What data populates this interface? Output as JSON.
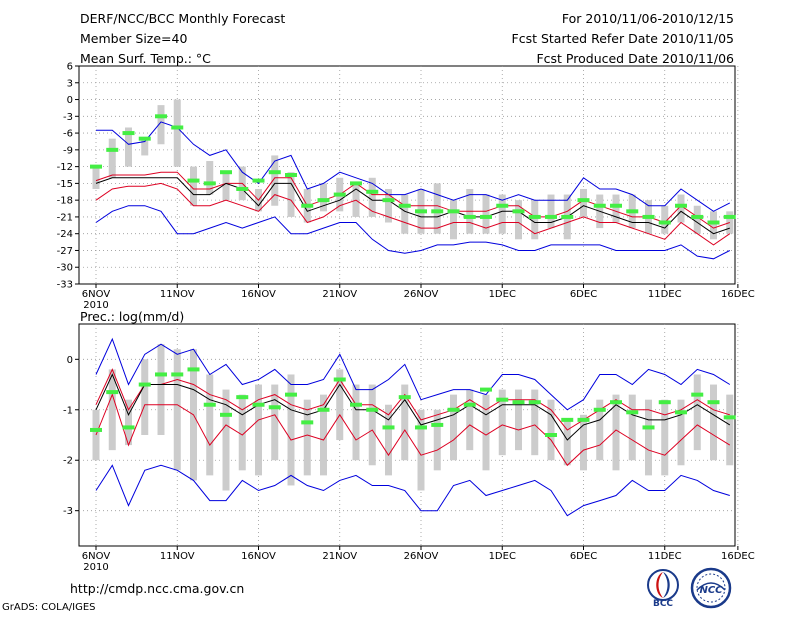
{
  "header": {
    "title": "DERF/NCC/BCC Monthly Forecast",
    "member_size": "Member Size=40",
    "variable": "Mean Surf. Temp.: °C",
    "period": "For 2010/11/06-2010/12/15",
    "started": "Fcst Started Refer Date 2010/11/05",
    "produced": "Fcst Produced Date 2010/11/06"
  },
  "prec_label": "Prec.: log(mm/d)",
  "footer": {
    "url": "http://cmdp.ncc.cma.gov.cn",
    "grads": "GrADS: COLA/IGES"
  },
  "logos": {
    "bcc": "BCC",
    "ncc": "NCC"
  },
  "colors": {
    "envelope": "#0000dd",
    "spread": "#dd0022",
    "mean": "#000000",
    "box": "#cccccc",
    "obs": "#44ee44"
  },
  "chart_data": [
    {
      "type": "line",
      "title": "Mean Surf. Temp.: °C",
      "x": [
        0,
        1,
        2,
        3,
        4,
        5,
        6,
        7,
        8,
        9,
        10,
        11,
        12,
        13,
        14,
        15,
        16,
        17,
        18,
        19,
        20,
        21,
        22,
        23,
        24,
        25,
        26,
        27,
        28,
        29,
        30,
        31,
        32,
        33,
        34,
        35,
        36,
        37,
        38,
        39
      ],
      "x_ticks": [
        {
          "x": 0,
          "label": "6NOV",
          "sub": "2010"
        },
        {
          "x": 5,
          "label": "11NOV"
        },
        {
          "x": 10,
          "label": "16NOV"
        },
        {
          "x": 15,
          "label": "21NOV"
        },
        {
          "x": 20,
          "label": "26NOV"
        },
        {
          "x": 25,
          "label": "1DEC"
        },
        {
          "x": 30,
          "label": "6DEC"
        },
        {
          "x": 35,
          "label": "11DEC"
        },
        {
          "x": 39.5,
          "label": "16DEC"
        }
      ],
      "ylim": [
        -33,
        6
      ],
      "yticks": [
        6,
        3,
        0,
        -3,
        -6,
        -9,
        -12,
        -15,
        -18,
        -21,
        -24,
        -27,
        -30,
        -33
      ],
      "series": [
        {
          "name": "max",
          "values": [
            -5.5,
            -5.5,
            -8,
            -7.5,
            -4,
            -5,
            -8,
            -10,
            -9,
            -13,
            -15,
            -11,
            -10,
            -16,
            -15,
            -13,
            -14,
            -15,
            -17,
            -17,
            -16,
            -17,
            -18,
            -17,
            -17,
            -18,
            -17,
            -18,
            -18,
            -18,
            -14,
            -16,
            -16,
            -17,
            -19,
            -19,
            -16,
            -18,
            -20,
            -18.5
          ]
        },
        {
          "name": "upper",
          "values": [
            -14.5,
            -13.5,
            -13.5,
            -13.5,
            -13,
            -13,
            -16,
            -16,
            -15,
            -15,
            -18,
            -14,
            -14,
            -19,
            -18,
            -17,
            -15,
            -17,
            -17,
            -19,
            -19,
            -19,
            -20,
            -20,
            -20,
            -19,
            -19,
            -21,
            -21,
            -20,
            -18,
            -19,
            -20,
            -21,
            -21,
            -22,
            -19,
            -21,
            -23,
            -22
          ]
        },
        {
          "name": "mean",
          "values": [
            -15,
            -14,
            -14,
            -14,
            -14,
            -14,
            -17,
            -17,
            -15,
            -16,
            -19,
            -15,
            -15,
            -20,
            -19,
            -18,
            -16,
            -18,
            -18,
            -20,
            -21,
            -21,
            -20,
            -21,
            -21,
            -20,
            -20,
            -22,
            -22,
            -21,
            -19,
            -20,
            -21,
            -22,
            -22,
            -23,
            -20,
            -22,
            -24,
            -23
          ]
        },
        {
          "name": "lower",
          "values": [
            -18,
            -16,
            -15.5,
            -15.5,
            -15,
            -16,
            -19,
            -19,
            -18,
            -19,
            -20,
            -17,
            -18,
            -22,
            -21,
            -19,
            -18,
            -20,
            -21,
            -22,
            -23,
            -23,
            -22,
            -22,
            -23,
            -22,
            -22,
            -24,
            -23,
            -22,
            -21,
            -22,
            -22,
            -23,
            -24,
            -25,
            -22,
            -24,
            -26,
            -24
          ]
        },
        {
          "name": "min",
          "values": [
            -22,
            -20,
            -19,
            -19,
            -20,
            -24,
            -24,
            -23,
            -22,
            -23,
            -22,
            -21,
            -24,
            -24,
            -23,
            -22,
            -22,
            -25,
            -27,
            -27.5,
            -27,
            -26,
            -26,
            -25.5,
            -25.5,
            -26,
            -27,
            -27,
            -26,
            -26,
            -26,
            -26,
            -27,
            -27,
            -27,
            -27,
            -26,
            -28,
            -28.5,
            -27
          ]
        }
      ],
      "box_ranges": [
        [
          -16,
          -12
        ],
        [
          -14,
          -7
        ],
        [
          -12,
          -5
        ],
        [
          -10,
          -7
        ],
        [
          -8,
          -1
        ],
        [
          -12,
          0
        ],
        [
          -19,
          -12
        ],
        [
          -17,
          -11
        ],
        [
          -18,
          -13
        ],
        [
          -18,
          -12
        ],
        [
          -20,
          -16
        ],
        [
          -19,
          -10
        ],
        [
          -21,
          -13
        ],
        [
          -22,
          -16
        ],
        [
          -20,
          -15
        ],
        [
          -20,
          -14
        ],
        [
          -21,
          -15
        ],
        [
          -21,
          -14
        ],
        [
          -22,
          -16
        ],
        [
          -24,
          -17
        ],
        [
          -24,
          -16
        ],
        [
          -24,
          -15
        ],
        [
          -25,
          -18
        ],
        [
          -24,
          -16
        ],
        [
          -24,
          -17
        ],
        [
          -24,
          -17
        ],
        [
          -25,
          -18
        ],
        [
          -25,
          -18
        ],
        [
          -23,
          -17
        ],
        [
          -25,
          -17
        ],
        [
          -21,
          -16
        ],
        [
          -23,
          -17
        ],
        [
          -22,
          -17
        ],
        [
          -23,
          -17
        ],
        [
          -24,
          -18
        ],
        [
          -24,
          -19
        ],
        [
          -22,
          -17
        ],
        [
          -24,
          -19
        ],
        [
          -25,
          -20
        ],
        [
          -24,
          -20
        ]
      ],
      "observed": [
        -12,
        -9,
        -6,
        -7,
        -3,
        -5,
        -14.5,
        -15,
        -13,
        -16,
        -14.5,
        -13,
        -13.5,
        -19,
        -18,
        -17,
        -15,
        -16.5,
        -18,
        -19,
        -20,
        -20,
        -20,
        -21,
        -21,
        -19,
        -20,
        -21,
        -21,
        -21,
        -18,
        -19,
        -19,
        -20,
        -21,
        -22,
        -19,
        -21,
        -22,
        -21
      ]
    },
    {
      "type": "line",
      "title": "Prec.: log(mm/d)",
      "x": [
        0,
        1,
        2,
        3,
        4,
        5,
        6,
        7,
        8,
        9,
        10,
        11,
        12,
        13,
        14,
        15,
        16,
        17,
        18,
        19,
        20,
        21,
        22,
        23,
        24,
        25,
        26,
        27,
        28,
        29,
        30,
        31,
        32,
        33,
        34,
        35,
        36,
        37,
        38,
        39
      ],
      "x_ticks": [
        {
          "x": 0,
          "label": "6NOV",
          "sub": "2010"
        },
        {
          "x": 5,
          "label": "11NOV"
        },
        {
          "x": 10,
          "label": "16NOV"
        },
        {
          "x": 15,
          "label": "21NOV"
        },
        {
          "x": 20,
          "label": "26NOV"
        },
        {
          "x": 25,
          "label": "1DEC"
        },
        {
          "x": 30,
          "label": "6DEC"
        },
        {
          "x": 35,
          "label": "11DEC"
        },
        {
          "x": 39.5,
          "label": "16DEC"
        }
      ],
      "ylim": [
        -3.7,
        0.7
      ],
      "yticks": [
        0,
        -1,
        -2,
        -3
      ],
      "series": [
        {
          "name": "max",
          "values": [
            -0.3,
            0.4,
            -0.5,
            0.1,
            0.3,
            0.1,
            0.2,
            -0.3,
            -0.1,
            -0.5,
            -0.4,
            -0.2,
            -0.5,
            -0.5,
            -0.4,
            0.1,
            -0.6,
            -0.6,
            -0.4,
            -0.1,
            -0.8,
            -0.7,
            -0.6,
            -0.6,
            -0.7,
            -0.3,
            -0.3,
            -0.4,
            -0.7,
            -1.0,
            -0.8,
            -0.3,
            -0.3,
            -0.5,
            -0.2,
            -0.3,
            -0.5,
            -0.2,
            -0.3,
            -0.5
          ]
        },
        {
          "name": "upper",
          "values": [
            -0.9,
            -0.2,
            -1.0,
            -0.5,
            -0.5,
            -0.4,
            -0.5,
            -0.7,
            -0.8,
            -1.0,
            -0.8,
            -0.7,
            -0.9,
            -1.0,
            -0.9,
            -0.4,
            -0.9,
            -0.9,
            -1.1,
            -0.7,
            -1.2,
            -1.1,
            -1.0,
            -0.8,
            -1.0,
            -0.8,
            -0.8,
            -0.8,
            -1.0,
            -1.4,
            -1.2,
            -1.0,
            -0.8,
            -1.0,
            -1.0,
            -1.1,
            -1.0,
            -0.8,
            -1.0,
            -1.1
          ]
        },
        {
          "name": "mean",
          "values": [
            -1.0,
            -0.3,
            -1.1,
            -0.5,
            -0.5,
            -0.5,
            -0.6,
            -0.8,
            -0.9,
            -1.1,
            -0.9,
            -0.8,
            -1.0,
            -1.1,
            -1.0,
            -0.5,
            -1.0,
            -1.0,
            -1.2,
            -0.8,
            -1.3,
            -1.2,
            -1.1,
            -0.9,
            -1.1,
            -0.9,
            -0.9,
            -0.9,
            -1.1,
            -1.6,
            -1.3,
            -1.2,
            -0.9,
            -1.1,
            -1.2,
            -1.2,
            -1.1,
            -0.9,
            -1.1,
            -1.3
          ]
        },
        {
          "name": "lower",
          "values": [
            -1.5,
            -0.7,
            -1.7,
            -0.9,
            -0.9,
            -0.9,
            -1.1,
            -1.7,
            -1.3,
            -1.5,
            -1.2,
            -1.1,
            -1.6,
            -1.5,
            -1.6,
            -1.1,
            -1.6,
            -1.4,
            -1.9,
            -1.4,
            -1.9,
            -1.8,
            -1.6,
            -1.3,
            -1.5,
            -1.3,
            -1.4,
            -1.3,
            -1.6,
            -2.1,
            -1.8,
            -1.7,
            -1.4,
            -1.6,
            -1.8,
            -1.9,
            -1.6,
            -1.3,
            -1.5,
            -1.7
          ]
        },
        {
          "name": "min",
          "values": [
            -2.6,
            -2.1,
            -2.9,
            -2.2,
            -2.1,
            -2.2,
            -2.4,
            -2.8,
            -2.8,
            -2.4,
            -2.6,
            -2.5,
            -2.3,
            -2.5,
            -2.6,
            -2.4,
            -2.3,
            -2.5,
            -2.5,
            -2.6,
            -3.0,
            -3.0,
            -2.5,
            -2.4,
            -2.7,
            -2.6,
            -2.5,
            -2.4,
            -2.6,
            -3.1,
            -2.9,
            -2.8,
            -2.7,
            -2.4,
            -2.6,
            -2.6,
            -2.3,
            -2.4,
            -2.6,
            -2.7
          ]
        }
      ],
      "box_ranges": [
        [
          -2.0,
          -1.0
        ],
        [
          -1.8,
          -0.2
        ],
        [
          -1.7,
          -0.8
        ],
        [
          -1.5,
          0.0
        ],
        [
          -1.5,
          0.3
        ],
        [
          -2.2,
          0.2
        ],
        [
          -2.4,
          0.2
        ],
        [
          -2.3,
          -0.3
        ],
        [
          -2.6,
          -0.6
        ],
        [
          -2.2,
          -0.7
        ],
        [
          -2.3,
          -0.5
        ],
        [
          -2.0,
          -0.5
        ],
        [
          -2.5,
          -0.3
        ],
        [
          -2.3,
          -0.8
        ],
        [
          -2.3,
          -0.7
        ],
        [
          -1.6,
          -0.2
        ],
        [
          -2.0,
          -0.5
        ],
        [
          -2.1,
          -0.5
        ],
        [
          -2.3,
          -0.9
        ],
        [
          -2.0,
          -0.5
        ],
        [
          -2.6,
          -1.0
        ],
        [
          -2.2,
          -1.0
        ],
        [
          -2.0,
          -0.7
        ],
        [
          -1.8,
          -0.6
        ],
        [
          -2.2,
          -0.7
        ],
        [
          -1.9,
          -0.6
        ],
        [
          -1.8,
          -0.6
        ],
        [
          -1.9,
          -0.6
        ],
        [
          -2.0,
          -0.8
        ],
        [
          -2.1,
          -1.2
        ],
        [
          -2.2,
          -1.1
        ],
        [
          -2.0,
          -0.8
        ],
        [
          -2.2,
          -0.7
        ],
        [
          -2.0,
          -0.7
        ],
        [
          -2.3,
          -0.8
        ],
        [
          -2.3,
          -0.8
        ],
        [
          -2.1,
          -0.8
        ],
        [
          -1.8,
          -0.3
        ],
        [
          -2.0,
          -0.5
        ],
        [
          -2.1,
          -0.7
        ]
      ],
      "observed": [
        -1.4,
        -0.65,
        -1.35,
        -0.5,
        -0.3,
        -0.3,
        -0.2,
        -0.9,
        -1.1,
        -0.75,
        -0.9,
        -0.95,
        -0.7,
        -1.25,
        -1.0,
        -0.4,
        -0.9,
        -1.0,
        -1.35,
        -0.75,
        -1.35,
        -1.3,
        -1.0,
        -0.9,
        -0.6,
        -0.8,
        -0.85,
        -0.85,
        -1.5,
        -1.2,
        -1.2,
        -1.0,
        -0.85,
        -1.05,
        -1.35,
        -0.85,
        -1.05,
        -0.7,
        -0.85,
        -1.15
      ]
    }
  ]
}
